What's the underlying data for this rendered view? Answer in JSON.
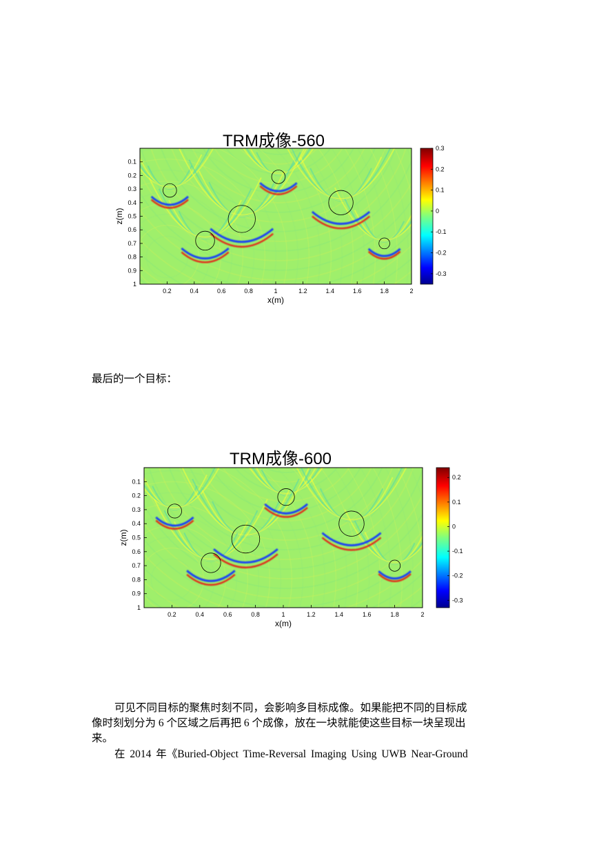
{
  "figures": [
    {
      "title": "TRM成像-560",
      "xlabel": "x(m)",
      "ylabel": "z(m)",
      "x_ticks": [
        "0.2",
        "0.4",
        "0.6",
        "0.8",
        "1",
        "1.2",
        "1.4",
        "1.6",
        "1.8",
        "2"
      ],
      "y_ticks": [
        "0.1",
        "0.2",
        "0.3",
        "0.4",
        "0.5",
        "0.6",
        "0.7",
        "0.8",
        "0.9",
        "1"
      ],
      "colorbar_ticks": [
        "0.3",
        "0.2",
        "0.1",
        "0",
        "-0.1",
        "-0.2",
        "-0.3"
      ]
    },
    {
      "title": "TRM成像-600",
      "xlabel": "x(m)",
      "ylabel": "z(m)",
      "x_ticks": [
        "0.2",
        "0.4",
        "0.6",
        "0.8",
        "1",
        "1.2",
        "1.4",
        "1.6",
        "1.8",
        "2"
      ],
      "y_ticks": [
        "0.1",
        "0.2",
        "0.3",
        "0.4",
        "0.5",
        "0.6",
        "0.7",
        "0.8",
        "0.9",
        "1"
      ],
      "colorbar_ticks": [
        "0.2",
        "0.1",
        "0",
        "-0.1",
        "-0.2",
        "-0.3"
      ]
    }
  ],
  "chart_data": [
    {
      "type": "heatmap",
      "title": "TRM成像-560",
      "xlabel": "x(m)",
      "ylabel": "z(m)",
      "xlim": [
        0,
        2
      ],
      "ylim": [
        1,
        0
      ],
      "colorbar_range": [
        -0.35,
        0.3
      ],
      "colormap": "jet",
      "targets": [
        {
          "x": 0.22,
          "z": 0.31,
          "r": 0.05
        },
        {
          "x": 1.02,
          "z": 0.21,
          "r": 0.05
        },
        {
          "x": 0.75,
          "z": 0.52,
          "r": 0.1
        },
        {
          "x": 1.48,
          "z": 0.4,
          "r": 0.09
        },
        {
          "x": 0.48,
          "z": 0.68,
          "r": 0.07
        },
        {
          "x": 1.8,
          "z": 0.7,
          "r": 0.04
        }
      ]
    },
    {
      "type": "heatmap",
      "title": "TRM成像-600",
      "xlabel": "x(m)",
      "ylabel": "z(m)",
      "xlim": [
        0,
        2
      ],
      "ylim": [
        1,
        0
      ],
      "colorbar_range": [
        -0.33,
        0.24
      ],
      "colormap": "jet",
      "targets": [
        {
          "x": 0.22,
          "z": 0.31,
          "r": 0.05
        },
        {
          "x": 1.02,
          "z": 0.21,
          "r": 0.06
        },
        {
          "x": 0.73,
          "z": 0.51,
          "r": 0.1
        },
        {
          "x": 1.49,
          "z": 0.4,
          "r": 0.09
        },
        {
          "x": 0.48,
          "z": 0.68,
          "r": 0.07
        },
        {
          "x": 1.8,
          "z": 0.7,
          "r": 0.04
        }
      ]
    }
  ],
  "text": {
    "caption_last_target": "最后的一个目标：",
    "para1_line1": "可见不同目标的聚焦时刻不同，会影响多目标成像。如果能把不同的目标成",
    "para1_line2": "像时刻划分为 6 个区域之后再把 6 个成像，放在一块就能使这些目标一块呈现出",
    "para1_line3": "来。",
    "para2_line1": "在 2014 年《Buried-Object Time-Reversal Imaging Using UWB Near-Ground"
  }
}
